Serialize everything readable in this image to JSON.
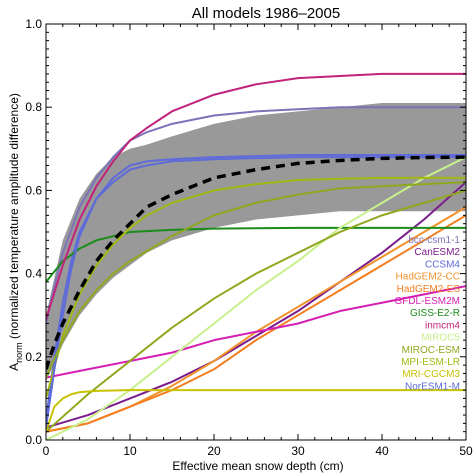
{
  "chart_data": {
    "type": "line",
    "title": "All models 1986–2005",
    "xlabel": "Effective mean snow depth (cm)",
    "ylabel_main": "A",
    "ylabel_sub": "norm",
    "ylabel_rest": " (normalized temperature amplitude difference)",
    "xlim": [
      0,
      50
    ],
    "ylim": [
      0,
      1.0
    ],
    "x_ticks": [
      0,
      10,
      20,
      30,
      40,
      50
    ],
    "y_ticks": [
      0.0,
      0.2,
      0.4,
      0.6,
      0.8,
      1.0
    ],
    "x_tick_labels": [
      "0",
      "10",
      "20",
      "30",
      "40",
      "50"
    ],
    "y_tick_labels": [
      "0.0",
      "0.2",
      "0.4",
      "0.6",
      "0.8",
      "1.0"
    ],
    "grid": false,
    "legend_position": "bottom-right",
    "spread_band": {
      "color": "#999999",
      "upper": {
        "x": [
          0,
          2,
          4,
          6,
          8,
          10,
          12,
          15,
          20,
          25,
          30,
          35,
          40,
          45,
          50
        ],
        "y": [
          0.3,
          0.48,
          0.58,
          0.64,
          0.68,
          0.7,
          0.71,
          0.73,
          0.76,
          0.78,
          0.79,
          0.8,
          0.81,
          0.81,
          0.81
        ]
      },
      "lower": {
        "x": [
          0,
          2,
          4,
          6,
          8,
          10,
          12,
          15,
          20,
          25,
          30,
          35,
          40,
          45,
          50
        ],
        "y": [
          0.14,
          0.23,
          0.3,
          0.35,
          0.39,
          0.42,
          0.45,
          0.48,
          0.51,
          0.53,
          0.54,
          0.55,
          0.55,
          0.55,
          0.55
        ]
      }
    },
    "mean_line": {
      "color": "#000000",
      "x": [
        0,
        1,
        2,
        4,
        6,
        8,
        10,
        12,
        15,
        20,
        25,
        30,
        35,
        40,
        45,
        50
      ],
      "y": [
        0.17,
        0.23,
        0.28,
        0.36,
        0.43,
        0.48,
        0.52,
        0.56,
        0.59,
        0.63,
        0.65,
        0.665,
        0.672,
        0.677,
        0.679,
        0.68
      ]
    },
    "series": [
      {
        "name": "bcc-csm1-1",
        "color": "#7b74b8",
        "x": [
          0,
          1,
          2,
          4,
          6,
          8,
          10,
          12,
          15,
          20,
          25,
          30,
          35,
          40,
          45,
          50
        ],
        "y": [
          0.28,
          0.37,
          0.45,
          0.56,
          0.63,
          0.68,
          0.72,
          0.74,
          0.76,
          0.78,
          0.79,
          0.795,
          0.8,
          0.8,
          0.8,
          0.8
        ]
      },
      {
        "name": "CanESM2",
        "color": "#7a1c8c",
        "x": [
          0,
          5,
          10,
          15,
          20,
          25,
          30,
          35,
          40,
          45,
          50
        ],
        "y": [
          0.03,
          0.06,
          0.1,
          0.14,
          0.19,
          0.25,
          0.31,
          0.38,
          0.45,
          0.53,
          0.62
        ]
      },
      {
        "name": "CCSM4",
        "color": "#5e6bd9",
        "x": [
          0,
          1,
          2,
          3,
          4,
          6,
          8,
          10,
          12,
          15,
          20,
          30,
          40,
          50
        ],
        "y": [
          0.05,
          0.2,
          0.33,
          0.43,
          0.5,
          0.58,
          0.62,
          0.65,
          0.66,
          0.67,
          0.675,
          0.68,
          0.68,
          0.68
        ]
      },
      {
        "name": "HadGEM2-CC",
        "color": "#f2922c",
        "x": [
          0,
          5,
          10,
          15,
          20,
          25,
          30,
          35,
          40,
          45,
          50
        ],
        "y": [
          0.02,
          0.04,
          0.08,
          0.13,
          0.19,
          0.26,
          0.32,
          0.38,
          0.44,
          0.5,
          0.56
        ]
      },
      {
        "name": "HadGEM2-ES",
        "color": "#f47e20",
        "x": [
          0,
          5,
          10,
          15,
          20,
          25,
          30,
          35,
          40,
          45,
          50
        ],
        "y": [
          0.02,
          0.04,
          0.08,
          0.12,
          0.17,
          0.24,
          0.3,
          0.36,
          0.42,
          0.48,
          0.54
        ]
      },
      {
        "name": "GFDL-ESM2M",
        "color": "#d41fb2",
        "x": [
          0,
          5,
          10,
          15,
          20,
          25,
          30,
          35,
          40,
          45,
          50
        ],
        "y": [
          0.15,
          0.17,
          0.19,
          0.21,
          0.24,
          0.26,
          0.28,
          0.31,
          0.33,
          0.35,
          0.37
        ]
      },
      {
        "name": "GISS-E2-R",
        "color": "#1a8c1a",
        "x": [
          0,
          2,
          4,
          6,
          8,
          10,
          15,
          20,
          30,
          40,
          50
        ],
        "y": [
          0.38,
          0.43,
          0.46,
          0.48,
          0.49,
          0.5,
          0.505,
          0.508,
          0.51,
          0.51,
          0.51
        ]
      },
      {
        "name": "inmcm4",
        "color": "#c0237b",
        "x": [
          0,
          2,
          4,
          6,
          8,
          10,
          12,
          15,
          20,
          25,
          30,
          35,
          40,
          45,
          50
        ],
        "y": [
          0.29,
          0.42,
          0.53,
          0.61,
          0.67,
          0.72,
          0.75,
          0.79,
          0.83,
          0.855,
          0.87,
          0.875,
          0.88,
          0.88,
          0.88
        ]
      },
      {
        "name": "MIROC5",
        "color": "#c8f08c",
        "x": [
          0,
          5,
          10,
          15,
          20,
          25,
          30,
          35,
          40,
          45,
          50
        ],
        "y": [
          0.0,
          0.05,
          0.12,
          0.2,
          0.28,
          0.36,
          0.43,
          0.51,
          0.57,
          0.63,
          0.68
        ]
      },
      {
        "name": "MIROC-ESM",
        "color": "#8fa81e",
        "x": [
          0,
          5,
          10,
          15,
          20,
          25,
          30,
          35,
          40,
          45,
          50
        ],
        "y": [
          0.02,
          0.11,
          0.19,
          0.27,
          0.34,
          0.4,
          0.45,
          0.5,
          0.54,
          0.57,
          0.6
        ]
      },
      {
        "name": "MPI-ESM-LR",
        "color": "#a2b812",
        "x": [
          0,
          2,
          4,
          6,
          8,
          10,
          12,
          15,
          20,
          25,
          30,
          35,
          40,
          45,
          50
        ],
        "y": [
          0.1,
          0.25,
          0.35,
          0.42,
          0.47,
          0.51,
          0.54,
          0.57,
          0.6,
          0.615,
          0.625,
          0.628,
          0.63,
          0.63,
          0.63
        ]
      },
      {
        "name": "MRI-CGCM3",
        "color": "#c8c200",
        "x": [
          0,
          1,
          2,
          3,
          4,
          6,
          10,
          20,
          30,
          40,
          50
        ],
        "y": [
          0.02,
          0.08,
          0.1,
          0.11,
          0.115,
          0.118,
          0.12,
          0.12,
          0.12,
          0.12,
          0.12
        ]
      },
      {
        "name": "NorESM1-M",
        "color": "#5e6bd9",
        "x": [
          0,
          1,
          2,
          3,
          4,
          6,
          8,
          10,
          12,
          15,
          20,
          30,
          40,
          50
        ],
        "y": [
          0.03,
          0.17,
          0.3,
          0.41,
          0.49,
          0.58,
          0.63,
          0.66,
          0.67,
          0.675,
          0.68,
          0.685,
          0.685,
          0.685
        ]
      },
      {
        "name": "",
        "color": "#8fa81e",
        "x": [
          0,
          2,
          4,
          6,
          8,
          10,
          15,
          20,
          25,
          30,
          35,
          40,
          45,
          50
        ],
        "y": [
          0.15,
          0.24,
          0.31,
          0.36,
          0.4,
          0.43,
          0.49,
          0.54,
          0.57,
          0.59,
          0.605,
          0.61,
          0.615,
          0.62
        ]
      }
    ]
  }
}
